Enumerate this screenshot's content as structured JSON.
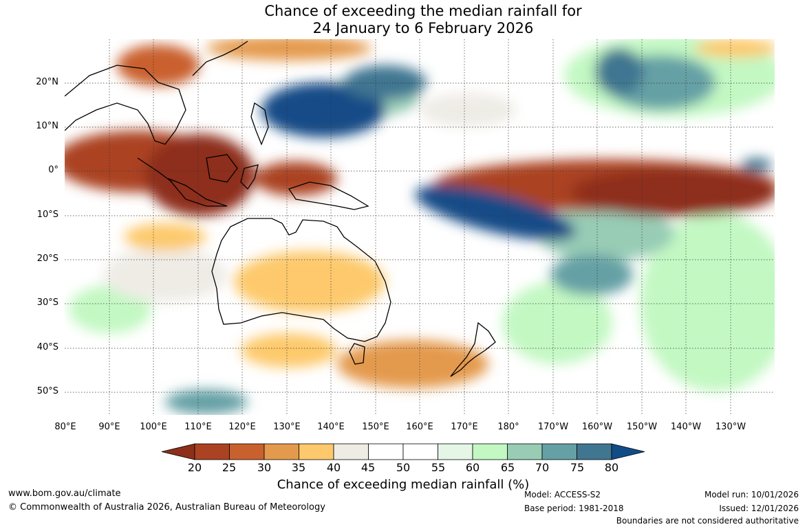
{
  "title": {
    "line1": "Chance of exceeding the median rainfall for",
    "line2": "24 January to 6 February 2026"
  },
  "map": {
    "lat_labels": [
      "20°N",
      "10°N",
      "0°",
      "10°S",
      "20°S",
      "30°S",
      "40°S",
      "50°S"
    ],
    "lon_labels": [
      "80°E",
      "90°E",
      "100°E",
      "110°E",
      "120°E",
      "130°E",
      "140°E",
      "150°E",
      "160°E",
      "170°E",
      "180°",
      "170°W",
      "160°W",
      "150°W",
      "140°W",
      "130°W"
    ]
  },
  "colorbar": {
    "ticks": [
      "20",
      "25",
      "30",
      "35",
      "40",
      "45",
      "50",
      "55",
      "60",
      "65",
      "70",
      "75",
      "80"
    ],
    "colors": [
      "#8e2f1c",
      "#ab4322",
      "#c9612f",
      "#e49a4d",
      "#fdc96c",
      "#efece6",
      "#ffffff",
      "#ffffff",
      "#e6f6e6",
      "#c3f8c3",
      "#98ccb5",
      "#65a0a5",
      "#417691",
      "#124c87"
    ],
    "label": "Chance of exceeding median rainfall (%)"
  },
  "footer": {
    "website": "www.bom.gov.au/climate",
    "copyright": "© Commonwealth of Australia 2026, Australian Bureau of Meteorology",
    "model": "Model: ACCESS-S2",
    "base_period": "Base period: 1981-2018",
    "model_run": "Model run: 10/01/2026",
    "issued": "Issued: 12/01/2026",
    "disclaimer": "Boundaries are not considered authoritative"
  }
}
